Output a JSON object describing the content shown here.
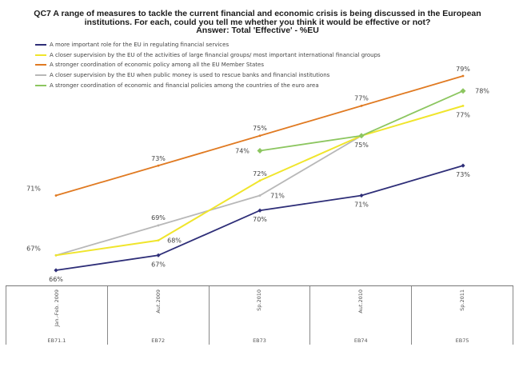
{
  "chart_data": {
    "type": "line",
    "title": "QC7 A range of measures to tackle the current financial and economic crisis is being discussed in the European institutions. For each, could you tell me whether you think it would be effective or not?",
    "title_lines": [
      "QC7 A range of measures to tackle the current financial and economic crisis is being discussed in the European",
      "institutions. For each, could you tell me whether you think it would be effective or not?",
      "Answer: Total 'Effective' - %EU"
    ],
    "xlabel": "",
    "ylabel": "",
    "grid": false,
    "legend_position": "top-left",
    "categories": [
      "Jan.-Feb. 2009",
      "Aut.2009",
      "Sp.2010",
      "Aut.2010",
      "Sp.2011"
    ],
    "waves": [
      "EB71.1",
      "EB72",
      "EB73",
      "EB74",
      "EB75"
    ],
    "ylim": [
      66,
      79
    ],
    "value_suffix": "%",
    "series": [
      {
        "name": "A more important role for the EU in regulating financial services",
        "color": "#2e2e78",
        "marker": "diamond",
        "values": [
          66,
          67,
          70,
          71,
          73
        ]
      },
      {
        "name": "A closer supervision by the EU of the activities of large financial groups/ most important international financial groups",
        "color": "#f0e52c",
        "marker": "none",
        "values": [
          67,
          68,
          72,
          null,
          77
        ]
      },
      {
        "name": "A stronger coordination of economic policy among all the EU Member States",
        "color": "#e07a22",
        "marker": "dash",
        "values": [
          71,
          73,
          75,
          77,
          79
        ]
      },
      {
        "name": "A closer supervision by the EU when public money is used to rescue banks and financial institutions",
        "color": "#b8b8b8",
        "marker": "none",
        "values": [
          67,
          69,
          71,
          75,
          null
        ]
      },
      {
        "name": "A stronger coordination of economic and financial policies among the countries of the euro area",
        "color": "#8cc660",
        "marker": "diamond",
        "values": [
          null,
          null,
          74,
          75,
          78
        ]
      }
    ],
    "data_labels": [
      {
        "series": 0,
        "index": 0,
        "text": "66%"
      },
      {
        "series": 0,
        "index": 1,
        "text": "67%"
      },
      {
        "series": 0,
        "index": 2,
        "text": "70%"
      },
      {
        "series": 0,
        "index": 3,
        "text": "71%"
      },
      {
        "series": 0,
        "index": 4,
        "text": "73%"
      },
      {
        "series": 1,
        "index": 1,
        "text": "68%"
      },
      {
        "series": 1,
        "index": 2,
        "text": "72%"
      },
      {
        "series": 1,
        "index": 4,
        "text": "77%"
      },
      {
        "series": 2,
        "index": 0,
        "text": "71%"
      },
      {
        "series": 2,
        "index": 1,
        "text": "73%"
      },
      {
        "series": 2,
        "index": 2,
        "text": "75%"
      },
      {
        "series": 2,
        "index": 3,
        "text": "77%"
      },
      {
        "series": 2,
        "index": 4,
        "text": "79%"
      },
      {
        "series": 3,
        "index": 0,
        "text": "67%"
      },
      {
        "series": 3,
        "index": 1,
        "text": "69%"
      },
      {
        "series": 3,
        "index": 2,
        "text": "71%"
      },
      {
        "series": 4,
        "index": 2,
        "text": "74%"
      },
      {
        "series": 4,
        "index": 3,
        "text": "75%"
      },
      {
        "series": 4,
        "index": 4,
        "text": "78%"
      }
    ]
  }
}
